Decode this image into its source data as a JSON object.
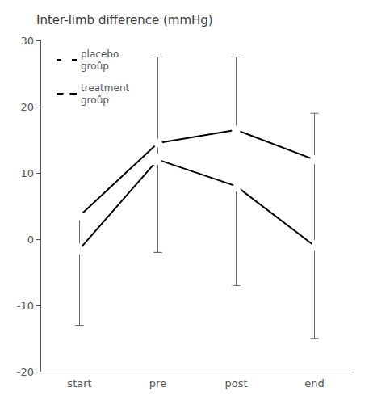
{
  "chart_data": {
    "type": "line",
    "title": "Inter-limb difference (mmHg)",
    "categories": [
      "start",
      "pre",
      "post",
      "end"
    ],
    "series": [
      {
        "name": "placebo\ngroûp",
        "color": "#000000",
        "marker": "circle",
        "values": [
          3.5,
          14.5,
          16.5,
          12.0
        ],
        "err_up": [
          0,
          13.0,
          11.0,
          0
        ],
        "err_down": [
          16.5,
          16.5,
          0,
          27.0
        ]
      },
      {
        "name": "treatment\ngroûp",
        "color": "#000000",
        "marker": "triangle",
        "values": [
          -1.5,
          12.0,
          8.0,
          -1.0
        ],
        "err_up": [
          0,
          0,
          0,
          20.0
        ],
        "err_down": [
          0,
          14.0,
          15.0,
          14.0
        ]
      }
    ],
    "ylim": [
      -20,
      30
    ],
    "yticks": [
      -20,
      -10,
      0,
      10,
      20,
      30
    ],
    "grid": false,
    "legend": "upper left"
  }
}
